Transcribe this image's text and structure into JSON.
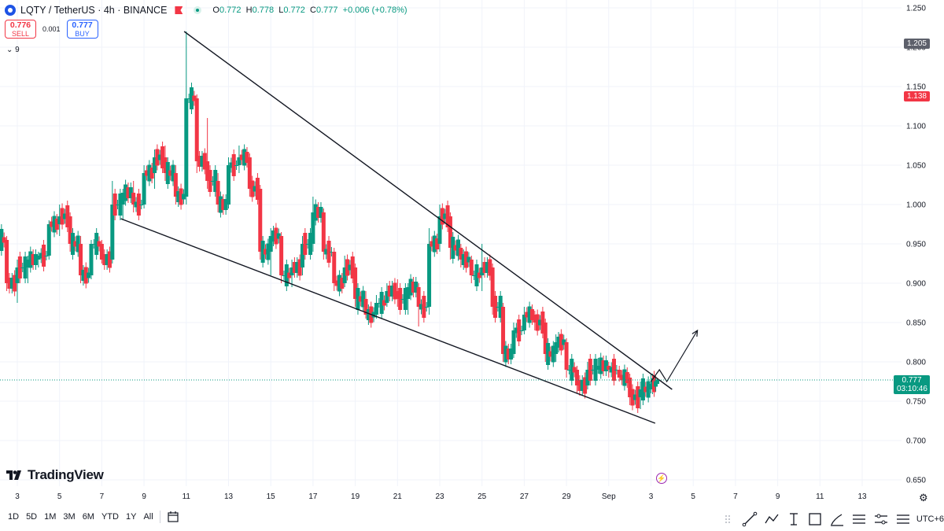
{
  "header": {
    "symbol_line": "LQTY / TetherUS · 4h · BINANCE",
    "o_label": "O",
    "o_value": "0.772",
    "h_label": "H",
    "h_value": "0.778",
    "l_label": "L",
    "l_value": "0.772",
    "c_label": "C",
    "c_value": "0.777",
    "change": "+0.006 (+0.78%)"
  },
  "trade": {
    "sell_price": "0.776",
    "sell_label": "SELL",
    "spread": "0.001",
    "buy_price": "0.777",
    "buy_label": "BUY"
  },
  "indicators_toggle": "9",
  "brand": "TradingView",
  "price_labels": {
    "top_marker": "1.205",
    "high_marker": "1.138",
    "current_price": "0.777",
    "countdown": "03:10:46"
  },
  "colors": {
    "up": "#089981",
    "down": "#f23645",
    "accent": "#2962ff"
  },
  "bottom": {
    "ranges": [
      "1D",
      "5D",
      "1M",
      "3M",
      "6M",
      "YTD",
      "1Y",
      "All"
    ],
    "timezone": "UTC+6"
  },
  "chart_data": {
    "type": "candlestick",
    "symbol": "LQTY / TetherUS",
    "interval": "4h",
    "exchange": "BINANCE",
    "y_axis": {
      "ylim": [
        0.65,
        1.25
      ],
      "ticks": [
        0.65,
        0.7,
        0.75,
        0.8,
        0.85,
        0.9,
        0.95,
        1.0,
        1.05,
        1.1,
        1.15,
        1.2,
        1.25
      ]
    },
    "x_axis": {
      "tick_labels": [
        "3",
        "5",
        "7",
        "9",
        "11",
        "13",
        "15",
        "17",
        "19",
        "21",
        "23",
        "25",
        "27",
        "29",
        "Sep",
        "3",
        "5",
        "7",
        "9",
        "11",
        "13"
      ]
    },
    "candles_close_path": [
      {
        "day": 2.0,
        "o": 0.96,
        "h": 0.97,
        "l": 0.94,
        "c": 0.955
      },
      {
        "day": 2.5,
        "o": 0.955,
        "h": 0.96,
        "l": 0.89,
        "c": 0.9
      },
      {
        "day": 3.0,
        "o": 0.9,
        "h": 0.93,
        "l": 0.875,
        "c": 0.92
      },
      {
        "day": 3.5,
        "o": 0.92,
        "h": 0.935,
        "l": 0.9,
        "c": 0.93
      },
      {
        "day": 4.0,
        "o": 0.93,
        "h": 0.94,
        "l": 0.92,
        "c": 0.935
      },
      {
        "day": 4.5,
        "o": 0.935,
        "h": 0.98,
        "l": 0.93,
        "c": 0.975
      },
      {
        "day": 5.0,
        "o": 0.975,
        "h": 1.0,
        "l": 0.96,
        "c": 0.985
      },
      {
        "day": 5.5,
        "o": 0.985,
        "h": 0.99,
        "l": 0.94,
        "c": 0.95
      },
      {
        "day": 6.0,
        "o": 0.95,
        "h": 0.96,
        "l": 0.9,
        "c": 0.91
      },
      {
        "day": 6.5,
        "o": 0.91,
        "h": 0.955,
        "l": 0.905,
        "c": 0.95
      },
      {
        "day": 7.0,
        "o": 0.95,
        "h": 0.955,
        "l": 0.925,
        "c": 0.93
      },
      {
        "day": 7.5,
        "o": 0.93,
        "h": 1.03,
        "l": 0.925,
        "c": 1.0
      },
      {
        "day": 8.0,
        "o": 1.0,
        "h": 1.02,
        "l": 0.98,
        "c": 1.015
      },
      {
        "day": 8.5,
        "o": 1.015,
        "h": 1.03,
        "l": 0.99,
        "c": 1.0
      },
      {
        "day": 9.0,
        "o": 1.0,
        "h": 1.05,
        "l": 0.995,
        "c": 1.04
      },
      {
        "day": 9.5,
        "o": 1.04,
        "h": 1.07,
        "l": 1.02,
        "c": 1.06
      },
      {
        "day": 10.0,
        "o": 1.06,
        "h": 1.075,
        "l": 1.03,
        "c": 1.04
      },
      {
        "day": 10.5,
        "o": 1.04,
        "h": 1.05,
        "l": 1.0,
        "c": 1.01
      },
      {
        "day": 11.0,
        "o": 1.01,
        "h": 1.22,
        "l": 1.0,
        "c": 1.135
      },
      {
        "day": 11.5,
        "o": 1.135,
        "h": 1.14,
        "l": 1.04,
        "c": 1.055
      },
      {
        "day": 12.0,
        "o": 1.055,
        "h": 1.11,
        "l": 1.02,
        "c": 1.03
      },
      {
        "day": 12.5,
        "o": 1.03,
        "h": 1.04,
        "l": 0.99,
        "c": 1.0
      },
      {
        "day": 13.0,
        "o": 1.0,
        "h": 1.06,
        "l": 0.995,
        "c": 1.05
      },
      {
        "day": 13.5,
        "o": 1.05,
        "h": 1.075,
        "l": 1.04,
        "c": 1.06
      },
      {
        "day": 14.0,
        "o": 1.06,
        "h": 1.065,
        "l": 1.01,
        "c": 1.02
      },
      {
        "day": 14.5,
        "o": 1.02,
        "h": 1.025,
        "l": 0.93,
        "c": 0.94
      },
      {
        "day": 15.0,
        "o": 0.94,
        "h": 0.97,
        "l": 0.91,
        "c": 0.96
      },
      {
        "day": 15.5,
        "o": 0.96,
        "h": 0.965,
        "l": 0.9,
        "c": 0.91
      },
      {
        "day": 16.0,
        "o": 0.91,
        "h": 0.93,
        "l": 0.895,
        "c": 0.92
      },
      {
        "day": 16.5,
        "o": 0.92,
        "h": 0.96,
        "l": 0.91,
        "c": 0.95
      },
      {
        "day": 17.0,
        "o": 0.95,
        "h": 1.01,
        "l": 0.94,
        "c": 0.99
      },
      {
        "day": 17.5,
        "o": 0.99,
        "h": 0.995,
        "l": 0.93,
        "c": 0.94
      },
      {
        "day": 18.0,
        "o": 0.94,
        "h": 0.945,
        "l": 0.89,
        "c": 0.9
      },
      {
        "day": 18.5,
        "o": 0.9,
        "h": 0.935,
        "l": 0.895,
        "c": 0.92
      },
      {
        "day": 19.0,
        "o": 0.92,
        "h": 0.925,
        "l": 0.87,
        "c": 0.88
      },
      {
        "day": 19.5,
        "o": 0.88,
        "h": 0.89,
        "l": 0.855,
        "c": 0.86
      },
      {
        "day": 20.0,
        "o": 0.86,
        "h": 0.885,
        "l": 0.855,
        "c": 0.875
      },
      {
        "day": 20.5,
        "o": 0.875,
        "h": 0.9,
        "l": 0.87,
        "c": 0.89
      },
      {
        "day": 21.0,
        "o": 0.89,
        "h": 0.905,
        "l": 0.87,
        "c": 0.88
      },
      {
        "day": 21.5,
        "o": 0.88,
        "h": 0.9,
        "l": 0.86,
        "c": 0.895
      },
      {
        "day": 22.0,
        "o": 0.895,
        "h": 0.9,
        "l": 0.845,
        "c": 0.87
      },
      {
        "day": 22.5,
        "o": 0.87,
        "h": 0.97,
        "l": 0.86,
        "c": 0.95
      },
      {
        "day": 23.0,
        "o": 0.95,
        "h": 1.0,
        "l": 0.94,
        "c": 0.985
      },
      {
        "day": 23.5,
        "o": 0.985,
        "h": 0.99,
        "l": 0.93,
        "c": 0.945
      },
      {
        "day": 24.0,
        "o": 0.945,
        "h": 0.95,
        "l": 0.92,
        "c": 0.93
      },
      {
        "day": 24.5,
        "o": 0.93,
        "h": 0.935,
        "l": 0.9,
        "c": 0.91
      },
      {
        "day": 25.0,
        "o": 0.91,
        "h": 0.95,
        "l": 0.89,
        "c": 0.92
      },
      {
        "day": 25.5,
        "o": 0.92,
        "h": 0.925,
        "l": 0.86,
        "c": 0.87
      },
      {
        "day": 26.0,
        "o": 0.87,
        "h": 0.875,
        "l": 0.8,
        "c": 0.81
      },
      {
        "day": 26.5,
        "o": 0.81,
        "h": 0.85,
        "l": 0.805,
        "c": 0.84
      },
      {
        "day": 27.0,
        "o": 0.84,
        "h": 0.87,
        "l": 0.835,
        "c": 0.86
      },
      {
        "day": 27.5,
        "o": 0.86,
        "h": 0.865,
        "l": 0.84,
        "c": 0.85
      },
      {
        "day": 28.0,
        "o": 0.85,
        "h": 0.855,
        "l": 0.8,
        "c": 0.81
      },
      {
        "day": 28.5,
        "o": 0.81,
        "h": 0.835,
        "l": 0.8,
        "c": 0.825
      },
      {
        "day": 29.0,
        "o": 0.825,
        "h": 0.83,
        "l": 0.78,
        "c": 0.79
      },
      {
        "day": 29.5,
        "o": 0.79,
        "h": 0.795,
        "l": 0.76,
        "c": 0.77
      },
      {
        "day": 30.0,
        "o": 0.77,
        "h": 0.8,
        "l": 0.765,
        "c": 0.79
      },
      {
        "day": 30.5,
        "o": 0.79,
        "h": 0.805,
        "l": 0.785,
        "c": 0.795
      },
      {
        "day": 31.0,
        "o": 0.795,
        "h": 0.8,
        "l": 0.78,
        "c": 0.79
      },
      {
        "day": 31.5,
        "o": 0.79,
        "h": 0.795,
        "l": 0.775,
        "c": 0.78
      },
      {
        "day": 32.0,
        "o": 0.78,
        "h": 0.785,
        "l": 0.745,
        "c": 0.755
      },
      {
        "day": 32.5,
        "o": 0.755,
        "h": 0.775,
        "l": 0.74,
        "c": 0.765
      },
      {
        "day": 33.0,
        "o": 0.765,
        "h": 0.785,
        "l": 0.76,
        "c": 0.772
      },
      {
        "day": 33.3,
        "o": 0.772,
        "h": 0.778,
        "l": 0.772,
        "c": 0.777
      }
    ],
    "annotations": [
      {
        "type": "trendline",
        "name": "falling-wedge-upper",
        "from": {
          "day": 10.9,
          "price": 1.22
        },
        "to": {
          "day": 34.0,
          "price": 0.765
        }
      },
      {
        "type": "trendline",
        "name": "falling-wedge-lower",
        "from": {
          "day": 7.9,
          "price": 0.982
        },
        "to": {
          "day": 33.2,
          "price": 0.722
        }
      },
      {
        "type": "projection-arrow",
        "points": [
          {
            "day": 33.0,
            "price": 0.775
          },
          {
            "day": 33.4,
            "price": 0.79
          },
          {
            "day": 33.75,
            "price": 0.775
          },
          {
            "day": 35.2,
            "price": 0.84
          }
        ]
      }
    ]
  }
}
